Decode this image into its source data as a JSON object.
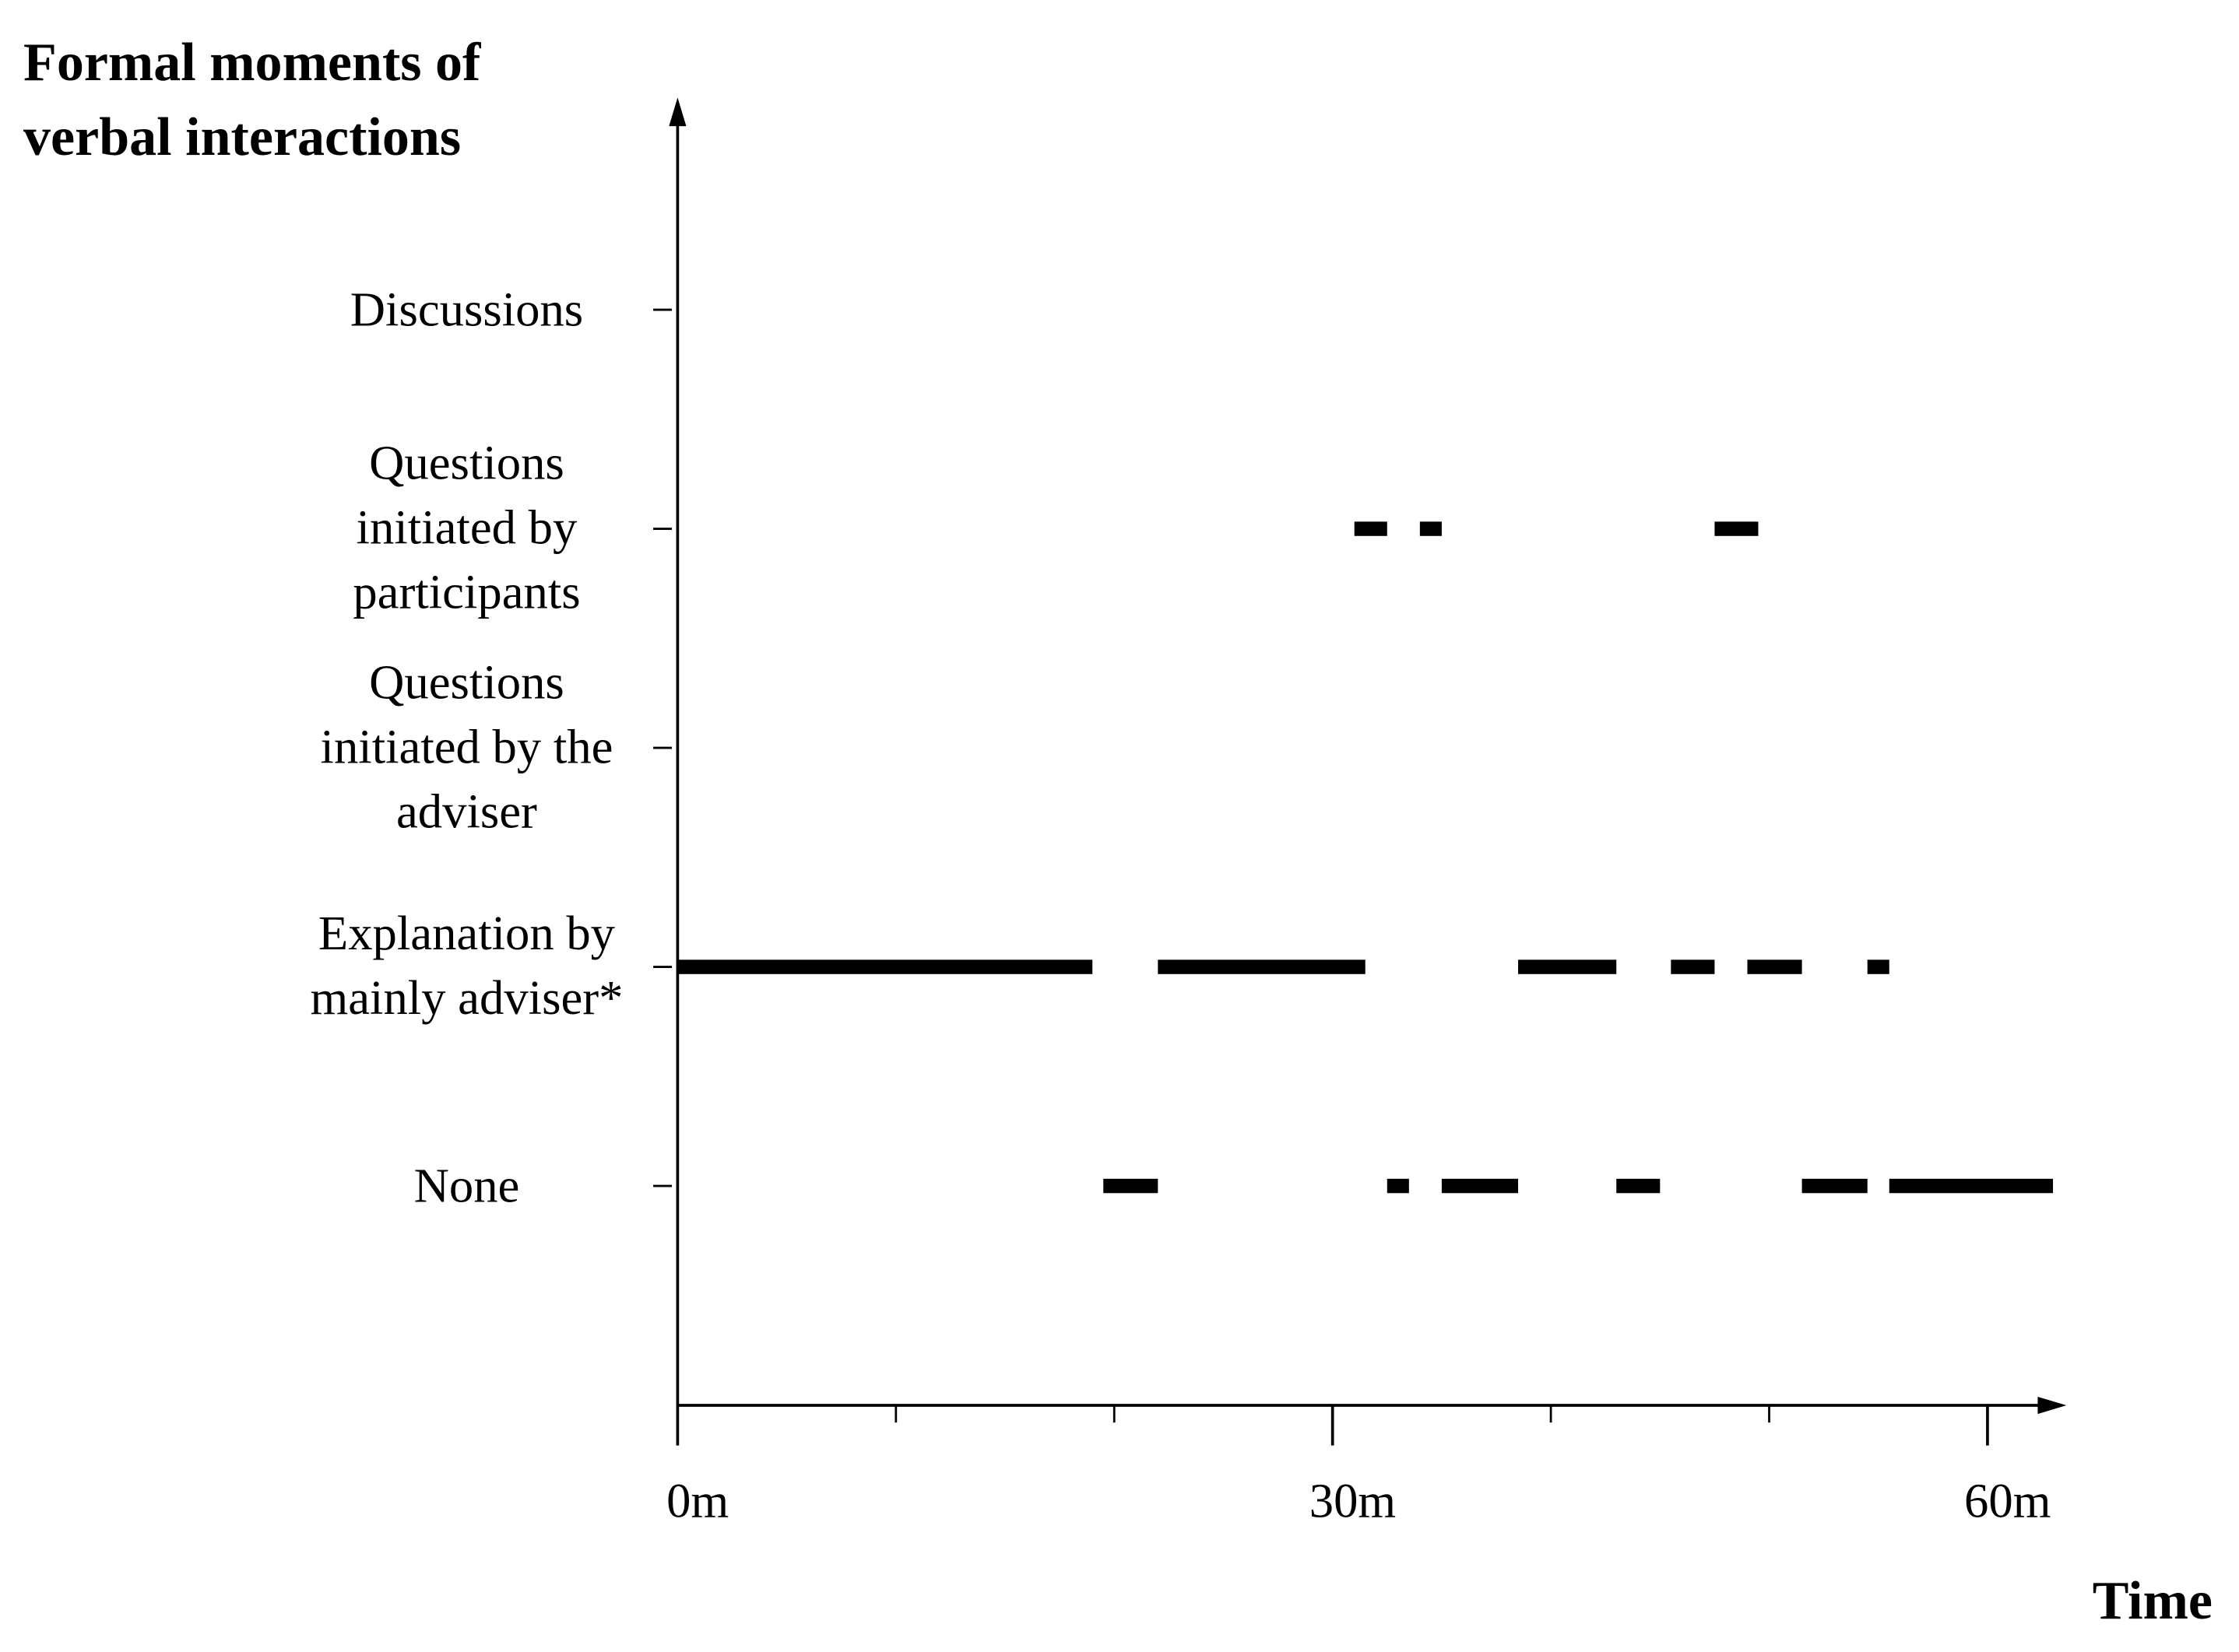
{
  "chart_data": {
    "type": "timeline",
    "title": "Formal moments of\nverbal interactions",
    "xlabel": "Time",
    "categories": [
      "Discussions",
      "Questions\ninitiated by\nparticipants",
      "Questions\ninitiated by the\nadviser",
      "Explanation by\nmainly adviser*",
      "None"
    ],
    "segments": [
      [],
      [
        [
          31,
          32.5
        ],
        [
          34,
          35
        ],
        [
          47.5,
          49.5
        ]
      ],
      [],
      [
        [
          0,
          19
        ],
        [
          22,
          31.5
        ],
        [
          38.5,
          43
        ],
        [
          45.5,
          47.5
        ],
        [
          49,
          51.5
        ],
        [
          54.5,
          55.5
        ]
      ],
      [
        [
          19.5,
          22
        ],
        [
          32.5,
          33.5
        ],
        [
          35,
          38.5
        ],
        [
          43,
          45
        ],
        [
          51.5,
          54.5
        ],
        [
          55.5,
          63
        ]
      ]
    ],
    "color": "#000000",
    "xlim": [
      0,
      63
    ],
    "xticks": [
      {
        "value": 0,
        "label": "0m"
      },
      {
        "value": 30,
        "label": "30m"
      },
      {
        "value": 60,
        "label": "60m"
      }
    ],
    "xminorticks": [
      10,
      20,
      40,
      50
    ]
  }
}
